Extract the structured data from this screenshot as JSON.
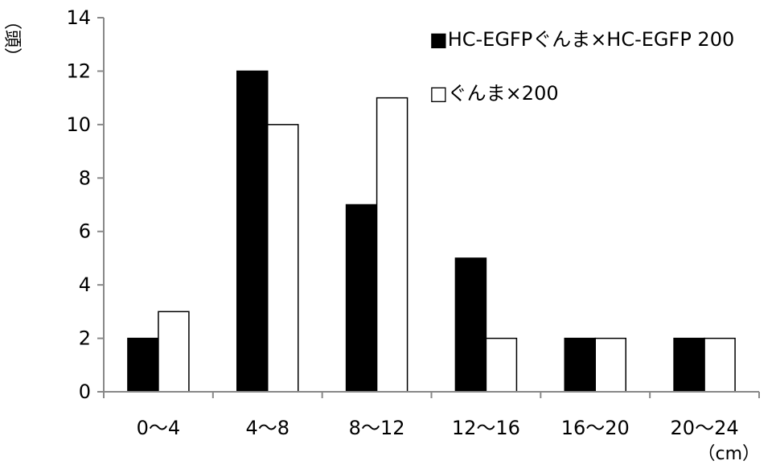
{
  "chart_data": {
    "type": "bar",
    "title": "",
    "xlabel": "（cm）",
    "ylabel": "（頭）",
    "categories": [
      "0～4",
      "4～8",
      "8～12",
      "12～16",
      "16～20",
      "20～24"
    ],
    "ylim": [
      0,
      14
    ],
    "yticks": [
      0,
      2,
      4,
      6,
      8,
      10,
      12,
      14
    ],
    "grid": false,
    "legend_position": "top-right",
    "series": [
      {
        "name": "HC-EGFPぐんま×HC-EGFP 200",
        "values": [
          2,
          12,
          7,
          5,
          2,
          2
        ],
        "fill": "#000000"
      },
      {
        "name": "ぐんま×200",
        "values": [
          3,
          10,
          11,
          2,
          2,
          2
        ],
        "fill": "#ffffff"
      }
    ],
    "legend": {
      "items": [
        {
          "marker": "■",
          "label": "HC-EGFPぐんま×HC-EGFP 200"
        },
        {
          "marker": "□",
          "label": "ぐんま×200"
        }
      ]
    }
  }
}
